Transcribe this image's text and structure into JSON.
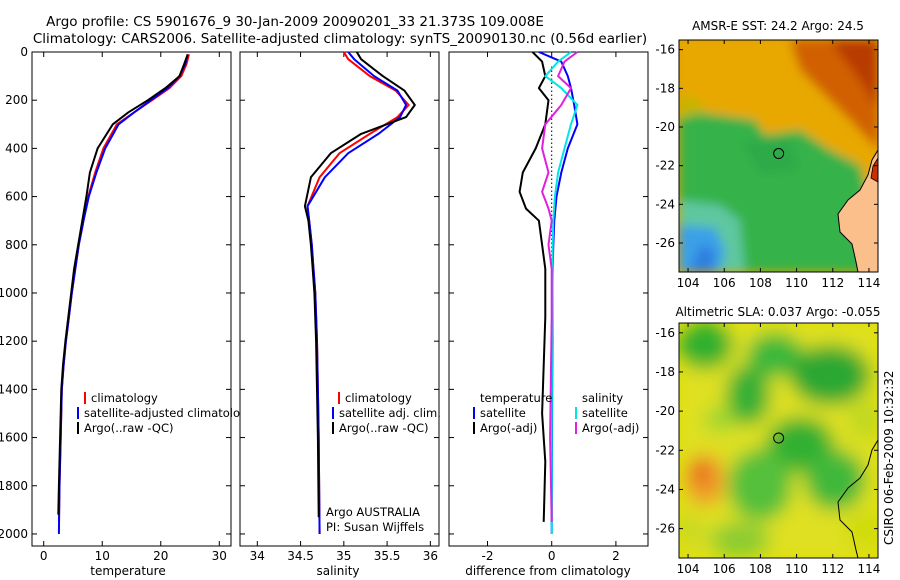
{
  "header": {
    "title_line1": "Argo profile: CS 5901676_9 30-Jan-2009 20090201_33 21.373S 109.008E",
    "title_line2": "Climatology: CARS2006. Satellite-adjusted climatology: synTS_20090130.nc (0.56d earlier)"
  },
  "side_stamp": "CSIRO 06-Feb-2009 10:32:32",
  "colors": {
    "climatology": "#ff0000",
    "satellite": "#0000ff",
    "argo": "#000000",
    "sal_satellite": "#00e5e5",
    "sal_argo": "#e020e0"
  },
  "chart_data": [
    {
      "type": "line",
      "name": "temperature-panel",
      "xlabel": "temperature",
      "ylabel": "",
      "xlim": [
        -2,
        32
      ],
      "ylim": [
        2050,
        0
      ],
      "xticks": [
        "0",
        "10",
        "20",
        "30"
      ],
      "yticks": [
        "0",
        "200",
        "400",
        "600",
        "800",
        "1000",
        "1200",
        "1400",
        "1600",
        "1800",
        "2000"
      ],
      "legend": [
        "climatology",
        "satellite-adjusted climatology",
        "Argo(..raw -QC)"
      ],
      "series": [
        {
          "name": "climatology",
          "color": "#ff0000",
          "x": [
            24.8,
            24.4,
            23.5,
            21.5,
            18.5,
            15.5,
            12.5,
            10.2,
            8.8,
            7.6,
            6.8,
            6.0,
            5.4,
            4.8,
            4.3,
            3.8,
            3.4,
            3.1,
            2.9,
            2.7,
            2.6
          ],
          "y": [
            10,
            50,
            100,
            150,
            200,
            250,
            300,
            400,
            500,
            600,
            700,
            800,
            900,
            1000,
            1100,
            1200,
            1300,
            1400,
            1600,
            1800,
            1950
          ]
        },
        {
          "name": "satellite-adjusted climatology",
          "color": "#0000ff",
          "x": [
            24.6,
            24.2,
            23.2,
            21.2,
            18.3,
            15.5,
            12.8,
            10.5,
            9.0,
            7.7,
            6.8,
            6.0,
            5.4,
            4.8,
            4.3,
            3.8,
            3.4,
            3.1,
            2.9,
            2.7,
            2.6
          ],
          "y": [
            10,
            50,
            100,
            150,
            200,
            250,
            300,
            400,
            500,
            600,
            700,
            800,
            900,
            1000,
            1100,
            1200,
            1300,
            1400,
            1600,
            1800,
            2000
          ]
        },
        {
          "name": "Argo(..raw -QC)",
          "color": "#000000",
          "x": [
            24.6,
            24.0,
            23.2,
            20.8,
            17.8,
            14.5,
            11.8,
            9.2,
            7.9,
            7.3,
            6.6,
            5.9,
            5.2,
            4.7,
            4.2,
            3.7,
            3.3,
            3.0,
            2.8,
            2.6,
            2.5
          ],
          "y": [
            10,
            50,
            100,
            150,
            200,
            250,
            300,
            400,
            500,
            600,
            700,
            800,
            900,
            1000,
            1100,
            1200,
            1300,
            1400,
            1600,
            1800,
            1920
          ]
        }
      ]
    },
    {
      "type": "line",
      "name": "salinity-panel",
      "xlabel": "salinity",
      "ylabel": "",
      "xlim": [
        33.8,
        36.1
      ],
      "ylim": [
        2050,
        0
      ],
      "xticks": [
        "34",
        "34.5",
        "35",
        "35.5",
        "36"
      ],
      "legend": [
        "climatology",
        "satellite adj. clim.",
        "Argo(..raw -QC)"
      ],
      "notes": [
        "Argo AUSTRALIA",
        "PI: Susan Wijffels"
      ],
      "series": [
        {
          "name": "climatology",
          "color": "#ff0000",
          "x": [
            35.0,
            35.05,
            35.3,
            35.6,
            35.75,
            35.62,
            35.3,
            34.95,
            34.72,
            34.58,
            34.6,
            34.63,
            34.65,
            34.67,
            34.69,
            34.7,
            34.71,
            34.72
          ],
          "y": [
            0,
            30,
            100,
            160,
            220,
            270,
            340,
            420,
            520,
            640,
            700,
            800,
            900,
            1000,
            1200,
            1400,
            1600,
            2000
          ]
        },
        {
          "name": "satellite adj. clim.",
          "color": "#0000ff",
          "x": [
            35.05,
            35.12,
            35.35,
            35.62,
            35.72,
            35.65,
            35.4,
            35.05,
            34.78,
            34.58,
            34.6,
            34.63,
            34.65,
            34.67,
            34.69,
            34.7,
            34.71,
            34.72
          ],
          "y": [
            0,
            30,
            100,
            160,
            220,
            270,
            340,
            420,
            520,
            640,
            700,
            800,
            900,
            1000,
            1200,
            1400,
            1600,
            2000
          ]
        },
        {
          "name": "Argo(..raw -QC)",
          "color": "#000000",
          "x": [
            35.15,
            35.2,
            35.45,
            35.7,
            35.82,
            35.72,
            35.2,
            34.85,
            34.62,
            34.55,
            34.59,
            34.62,
            34.64,
            34.66,
            34.68,
            34.69,
            34.7,
            34.71
          ],
          "y": [
            0,
            30,
            100,
            160,
            220,
            270,
            340,
            420,
            520,
            640,
            700,
            800,
            900,
            1000,
            1200,
            1400,
            1600,
            1930
          ]
        }
      ]
    },
    {
      "type": "line",
      "name": "difference-panel",
      "xlabel": "difference from climatology",
      "ylabel": "",
      "xlim": [
        -3.2,
        3.0
      ],
      "ylim": [
        2050,
        0
      ],
      "xticks": [
        "-2",
        "0",
        "2"
      ],
      "legend_temperature": {
        "heading": "temperature",
        "items": [
          "satellite",
          "Argo(-adj)"
        ]
      },
      "legend_salinity": {
        "heading": "salinity",
        "items": [
          "satellite",
          "Argo(-adj)"
        ]
      },
      "series": [
        {
          "name": "temperature satellite",
          "color": "#0000ff",
          "x": [
            -0.4,
            0.3,
            0.5,
            0.6,
            0.7,
            0.8,
            0.5,
            0.3,
            0.15,
            0.08,
            0.05,
            0.03,
            0.02,
            0.02,
            0.01,
            0.0
          ],
          "y": [
            0,
            40,
            100,
            150,
            220,
            300,
            400,
            500,
            600,
            700,
            800,
            900,
            1000,
            1200,
            1600,
            2000
          ]
        },
        {
          "name": "temperature Argo(-adj)",
          "color": "#000000",
          "x": [
            -0.6,
            -0.3,
            -0.2,
            -0.4,
            -0.1,
            -0.2,
            -0.5,
            -0.9,
            -1.0,
            -0.8,
            -0.4,
            -0.3,
            -0.2,
            -0.2,
            -0.3,
            -0.2,
            -0.25
          ],
          "y": [
            0,
            40,
            100,
            150,
            200,
            300,
            400,
            500,
            580,
            650,
            700,
            800,
            900,
            1100,
            1500,
            1700,
            1950
          ]
        },
        {
          "name": "salinity satellite",
          "color": "#00e5e5",
          "x": [
            0.6,
            0.2,
            -0.2,
            0.3,
            0.8,
            0.6,
            0.4,
            0.2,
            0.1,
            0.05,
            0.03,
            0.02,
            0.01,
            0.0,
            0.0
          ],
          "y": [
            0,
            40,
            100,
            150,
            220,
            300,
            400,
            500,
            600,
            700,
            800,
            1000,
            1200,
            1600,
            2000
          ]
        },
        {
          "name": "salinity Argo(-adj)",
          "color": "#e020e0",
          "x": [
            0.8,
            0.4,
            0.2,
            0.6,
            0.3,
            -0.2,
            -0.3,
            -0.1,
            -0.3,
            -0.1,
            0.0,
            -0.1,
            0.0,
            0.0,
            -0.05,
            0.0
          ],
          "y": [
            0,
            40,
            100,
            150,
            220,
            300,
            400,
            500,
            580,
            650,
            700,
            800,
            900,
            1100,
            1600,
            1950
          ]
        }
      ]
    },
    {
      "type": "heatmap",
      "name": "sst-map",
      "title": "AMSR-E SST: 24.2 Argo: 24.5",
      "xlim": [
        103.5,
        114.5
      ],
      "ylim": [
        -27.5,
        -15.5
      ],
      "xticks": [
        "104",
        "106",
        "108",
        "110",
        "112",
        "114"
      ],
      "yticks": [
        "-16",
        "-18",
        "-20",
        "-22",
        "-24",
        "-26"
      ],
      "float_position": {
        "lon": 109.008,
        "lat": -21.373
      }
    },
    {
      "type": "heatmap",
      "name": "sla-map",
      "title": "Altimetric SLA: 0.037 Argo: -0.055",
      "xlim": [
        103.5,
        114.5
      ],
      "ylim": [
        -27.5,
        -15.5
      ],
      "xticks": [
        "104",
        "106",
        "108",
        "110",
        "112",
        "114"
      ],
      "yticks": [
        "-16",
        "-18",
        "-20",
        "-22",
        "-24",
        "-26"
      ],
      "float_position": {
        "lon": 109.008,
        "lat": -21.373
      }
    }
  ]
}
